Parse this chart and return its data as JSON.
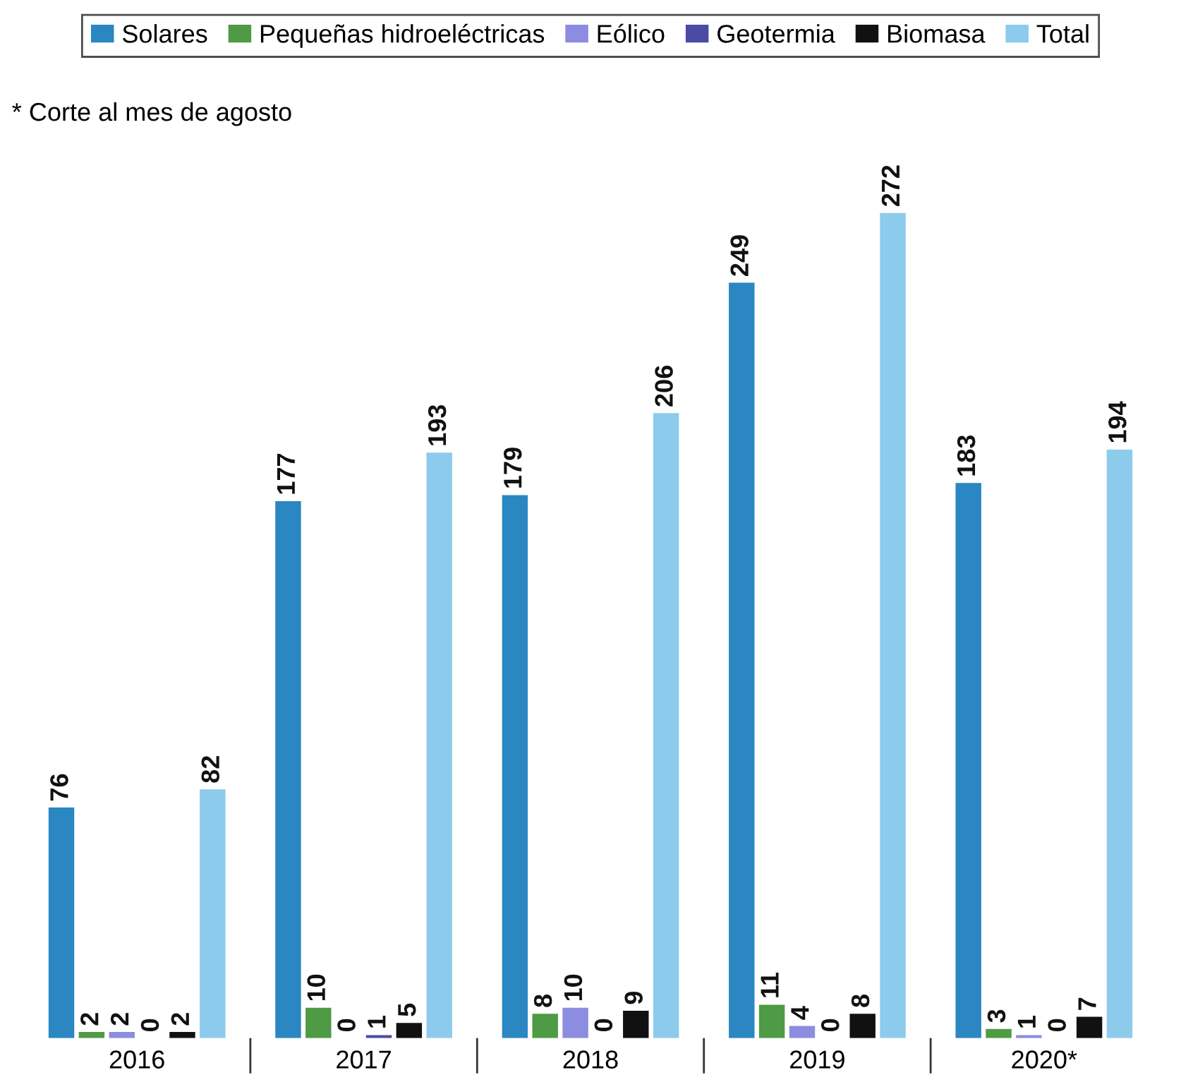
{
  "chart_data": {
    "type": "bar",
    "categories": [
      "2016",
      "2017",
      "2018",
      "2019",
      "2020*"
    ],
    "series": [
      {
        "name": "Solares",
        "color": "#2a87c2",
        "values": [
          76,
          177,
          179,
          249,
          183
        ]
      },
      {
        "name": "Pequeñas hidroeléctricas",
        "color": "#4f9a45",
        "values": [
          2,
          10,
          8,
          11,
          3
        ]
      },
      {
        "name": "Eólico",
        "color": "#8c8ce0",
        "values": [
          2,
          0,
          10,
          4,
          1
        ]
      },
      {
        "name": "Geotermia",
        "color": "#4b4ba6",
        "values": [
          0,
          1,
          0,
          0,
          0
        ]
      },
      {
        "name": "Biomasa",
        "color": "#111111",
        "values": [
          2,
          5,
          9,
          8,
          7
        ]
      },
      {
        "name": "Total",
        "color": "#8ccbec",
        "values": [
          82,
          193,
          206,
          272,
          194
        ]
      }
    ],
    "data_labels": true,
    "legend": "top",
    "grid": false,
    "annotations": [
      "* Corte al mes de agosto"
    ]
  }
}
